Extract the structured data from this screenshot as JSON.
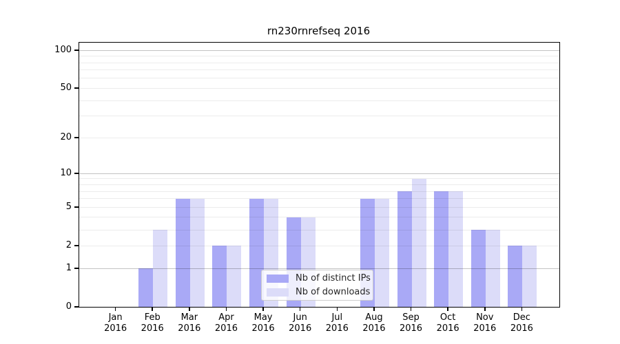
{
  "chart_data": {
    "type": "bar",
    "title": "rn230rnrefseq 2016",
    "categories": [
      "Jan",
      "Feb",
      "Mar",
      "Apr",
      "May",
      "Jun",
      "Jul",
      "Aug",
      "Sep",
      "Oct",
      "Nov",
      "Dec"
    ],
    "category_year": "2016",
    "series": [
      {
        "name": "Nb of distinct IPs",
        "color": "#a9a9f6",
        "values": [
          0,
          1,
          6,
          2,
          6,
          4,
          0,
          6,
          7,
          7,
          3,
          2
        ]
      },
      {
        "name": "Nb of downloads",
        "color": "#dcdcf9",
        "values": [
          0,
          3,
          6,
          2,
          6,
          4,
          0,
          6,
          9,
          7,
          3,
          2
        ]
      }
    ],
    "xlabel": "",
    "ylabel": "",
    "yscale": "log1p",
    "y_ticks": [
      0,
      1,
      2,
      5,
      10,
      20,
      50,
      100
    ],
    "y_minor_gridlines": [
      2,
      3,
      4,
      5,
      6,
      7,
      8,
      9,
      20,
      30,
      40,
      50,
      60,
      70,
      80,
      90
    ],
    "y_major_gridlines": [
      1,
      10,
      100
    ],
    "ylim": [
      0,
      115
    ],
    "grid": "horizontal",
    "legend_position": "lower-center-inside",
    "background_color": "#ffffff"
  }
}
